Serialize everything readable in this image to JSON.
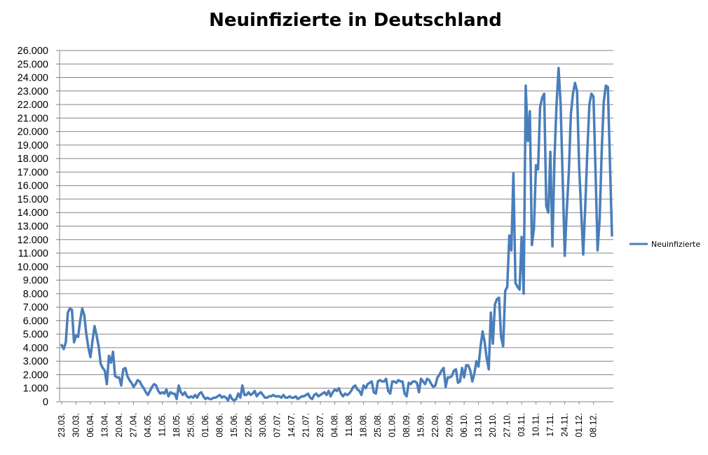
{
  "chart_data": {
    "type": "line",
    "title": "Neuinfizierte in Deutschland",
    "xlabel": "",
    "ylabel": "",
    "ylim": [
      0,
      26000
    ],
    "y_ticks": [
      "0",
      "1.000",
      "2.000",
      "3.000",
      "4.000",
      "5.000",
      "6.000",
      "7.000",
      "8.000",
      "9.000",
      "10.000",
      "11.000",
      "12.000",
      "13.000",
      "14.000",
      "15.000",
      "16.000",
      "17.000",
      "18.000",
      "19.000",
      "20.000",
      "21.000",
      "22.000",
      "23.000",
      "24.000",
      "25.000",
      "26.000"
    ],
    "x_ticks": [
      "23.03.",
      "30.03.",
      "06.04.",
      "13.04.",
      "20.04.",
      "27.04.",
      "04.05.",
      "11.05.",
      "18.05.",
      "25.05.",
      "01.06.",
      "08.06.",
      "15.06.",
      "22.06.",
      "30.06.",
      "07.07.",
      "14.07.",
      "21.07.",
      "28.07.",
      "04.08.",
      "11.08.",
      "18.08.",
      "25.08.",
      "01.09.",
      "08.09.",
      "15.09.",
      "22.09.",
      "29.09.",
      "06.10.",
      "13.10.",
      "20.10.",
      "27.10.",
      "03.11.",
      "10.11.",
      "17.11.",
      "24.11.",
      "01.12.",
      "08.12."
    ],
    "grid": true,
    "legend_position": "right",
    "series": [
      {
        "name": "Neuinfizierte",
        "color": "#4a7ebb",
        "values": [
          4200,
          3900,
          4400,
          6600,
          6900,
          6800,
          4400,
          4900,
          4800,
          6000,
          6900,
          6400,
          5000,
          4000,
          3300,
          4500,
          5600,
          4900,
          4100,
          2800,
          2500,
          2300,
          1300,
          3400,
          2900,
          3700,
          1900,
          1800,
          1800,
          1200,
          2400,
          2500,
          1900,
          1600,
          1400,
          1100,
          1300,
          1600,
          1500,
          1200,
          1000,
          700,
          500,
          800,
          1100,
          1300,
          1200,
          800,
          600,
          700,
          600,
          900,
          400,
          700,
          600,
          600,
          200,
          1200,
          700,
          500,
          700,
          400,
          300,
          400,
          300,
          500,
          300,
          600,
          700,
          400,
          200,
          300,
          200,
          200,
          300,
          300,
          400,
          500,
          300,
          400,
          300,
          100,
          500,
          200,
          100,
          200,
          600,
          300,
          1200,
          500,
          500,
          700,
          500,
          600,
          800,
          400,
          600,
          700,
          500,
          300,
          300,
          400,
          400,
          500,
          400,
          400,
          400,
          300,
          500,
          300,
          300,
          400,
          300,
          300,
          400,
          200,
          300,
          400,
          400,
          500,
          600,
          300,
          200,
          500,
          600,
          400,
          500,
          600,
          700,
          500,
          800,
          400,
          700,
          900,
          800,
          1000,
          600,
          400,
          600,
          500,
          600,
          800,
          1100,
          1200,
          900,
          800,
          500,
          1200,
          1000,
          1300,
          1400,
          1500,
          700,
          600,
          1500,
          1600,
          1500,
          1500,
          1700,
          800,
          600,
          1500,
          1500,
          1400,
          1600,
          1500,
          1500,
          600,
          400,
          1400,
          1300,
          1500,
          1500,
          1400,
          700,
          1700,
          1500,
          1300,
          1700,
          1600,
          1300,
          1100,
          1200,
          1800,
          2000,
          2300,
          2500,
          1100,
          1800,
          1800,
          1900,
          2300,
          2400,
          1400,
          1500,
          2500,
          1800,
          2700,
          2700,
          2300,
          1500,
          2100,
          3000,
          2600,
          4100,
          5200,
          4400,
          3200,
          2400,
          6600,
          4300,
          7200,
          7600,
          7700,
          4800,
          4100,
          8200,
          8500,
          12300,
          11200,
          16900,
          8800,
          8500,
          8300,
          12200,
          8000,
          23400,
          19300,
          21500,
          11600,
          12800,
          17500,
          17200,
          21800,
          22500,
          22800,
          14500,
          14000,
          18500,
          11500,
          18000,
          22000,
          24700,
          22000,
          16500,
          10800,
          14200,
          17000,
          21300,
          22800,
          23600,
          23000,
          17500,
          14100,
          10900,
          14500,
          18500,
          22000,
          22800,
          22600,
          17000,
          11200,
          13500,
          18500,
          22200,
          23400,
          23300,
          17800,
          12300
        ]
      }
    ]
  }
}
